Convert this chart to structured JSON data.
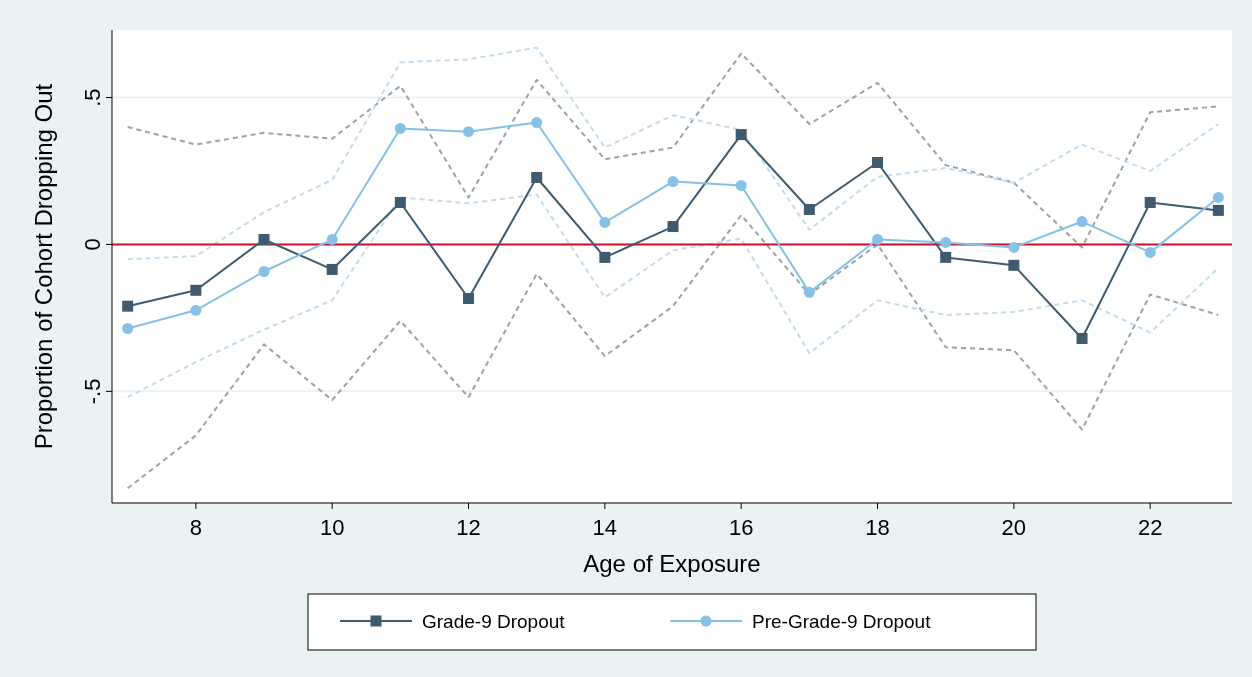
{
  "chart_data": {
    "type": "line",
    "xlabel": "Age of Exposure",
    "ylabel": "Proportion of Cohort Dropping Out",
    "x": [
      7,
      8,
      9,
      10,
      11,
      12,
      13,
      14,
      15,
      16,
      17,
      18,
      19,
      20,
      21,
      22,
      23
    ],
    "xlim": [
      6.77,
      23.2
    ],
    "xticks": [
      8,
      10,
      12,
      14,
      16,
      18,
      20,
      22
    ],
    "ylim": [
      -0.88,
      0.73
    ],
    "yticks": [
      {
        "value": -0.5,
        "label": "-.5"
      },
      0,
      {
        "value": 0.5,
        "label": ".5"
      }
    ],
    "grid": "y",
    "legend": "bottom",
    "ref_lines": [
      {
        "axis": "y",
        "value": 0,
        "color": "#c8102e"
      }
    ],
    "series": [
      {
        "color": "#9aa3aa",
        "line_style": "dashed",
        "values": [
          -0.83,
          -0.65,
          -0.34,
          -0.53,
          -0.26,
          -0.52,
          -0.1,
          -0.38,
          -0.21,
          0.1,
          -0.17,
          0.0,
          -0.35,
          -0.36,
          -0.63,
          -0.17,
          -0.24
        ]
      },
      {
        "color": "#9aa3aa",
        "line_style": "dashed",
        "values": [
          0.4,
          0.34,
          0.38,
          0.36,
          0.54,
          0.16,
          0.56,
          0.29,
          0.33,
          0.65,
          0.41,
          0.55,
          0.27,
          0.21,
          -0.01,
          0.45,
          0.47
        ]
      },
      {
        "color": "#c3dcec",
        "line_style": "dashed",
        "values": [
          -0.52,
          -0.4,
          -0.29,
          -0.19,
          0.16,
          0.14,
          0.17,
          -0.18,
          -0.02,
          0.02,
          -0.37,
          -0.19,
          -0.24,
          -0.23,
          -0.19,
          -0.3,
          -0.08
        ]
      },
      {
        "color": "#c3dcec",
        "line_style": "dashed",
        "values": [
          -0.05,
          -0.04,
          0.11,
          0.22,
          0.62,
          0.63,
          0.67,
          0.33,
          0.44,
          0.39,
          0.05,
          0.23,
          0.26,
          0.21,
          0.34,
          0.25,
          0.41
        ]
      },
      {
        "name": "Grade-9 Dropout",
        "color": "#3e5b6f",
        "marker": "square",
        "values": [
          -0.21,
          -0.156,
          0.017,
          -0.085,
          0.143,
          -0.184,
          0.228,
          -0.044,
          0.061,
          0.374,
          0.119,
          0.279,
          -0.044,
          -0.071,
          -0.32,
          0.143,
          0.116
        ]
      },
      {
        "name": "Pre-Grade-9 Dropout",
        "color": "#86c2e6",
        "marker": "circle",
        "values": [
          -0.286,
          -0.224,
          -0.092,
          0.017,
          0.395,
          0.384,
          0.415,
          0.075,
          0.214,
          0.201,
          -0.163,
          0.017,
          0.007,
          -0.01,
          0.078,
          -0.027,
          0.16
        ]
      }
    ]
  }
}
